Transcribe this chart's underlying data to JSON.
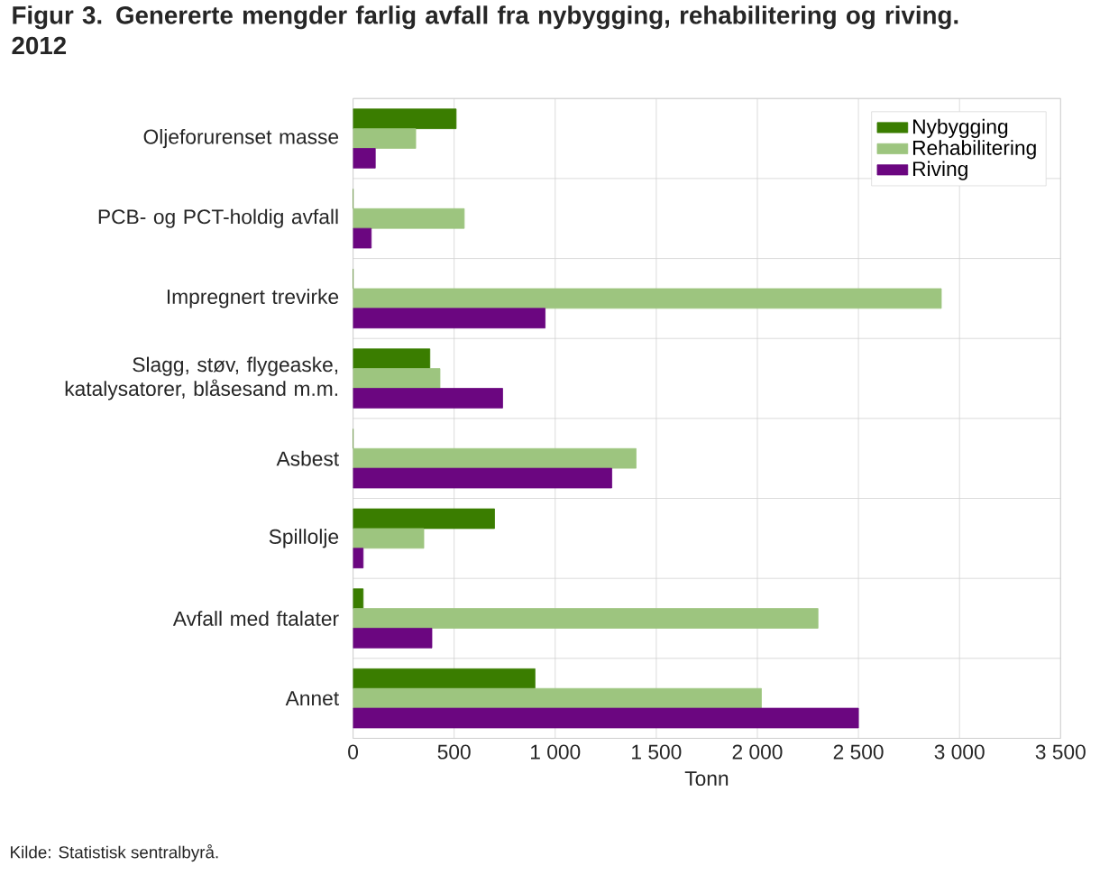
{
  "chart_data": {
    "type": "bar",
    "orientation": "horizontal",
    "title": "Figur 3. Genererte mengder farlig avfall fra nybygging, rehabilitering og riving. 2012",
    "xlabel": "Tonn",
    "annotations": [
      "Kilde: Statistisk sentralbyrå."
    ],
    "categories": [
      "Oljeforurenset masse",
      "PCB- og PCT-holdig avfall",
      "Impregnert trevirke",
      "Slagg, støv, flygeaske, katalysatorer, blåsesand m.m.",
      "Asbest",
      "Spillolje",
      "Avfall med ftalater",
      "Annet"
    ],
    "series": [
      {
        "name": "Nybygging",
        "color": "#3a7d00",
        "values": [
          510,
          0,
          0,
          380,
          0,
          700,
          50,
          900
        ]
      },
      {
        "name": "Rehabilitering",
        "color": "#9dc57f",
        "values": [
          310,
          550,
          2910,
          430,
          1400,
          350,
          2300,
          2020
        ]
      },
      {
        "name": "Riving",
        "color": "#6b0680",
        "values": [
          110,
          90,
          950,
          740,
          1280,
          50,
          390,
          2500
        ]
      }
    ],
    "xlim": [
      0,
      3500
    ],
    "xticks": [
      0,
      500,
      {
        "value": 1000,
        "label": "1 000"
      },
      {
        "value": 1500,
        "label": "1 500"
      },
      {
        "value": 2000,
        "label": "2 000"
      },
      {
        "value": 2500,
        "label": "2 500"
      },
      {
        "value": 3000,
        "label": "3 000"
      },
      {
        "value": 3500,
        "label": "3 500"
      }
    ],
    "grid": true,
    "legend": "top right"
  }
}
